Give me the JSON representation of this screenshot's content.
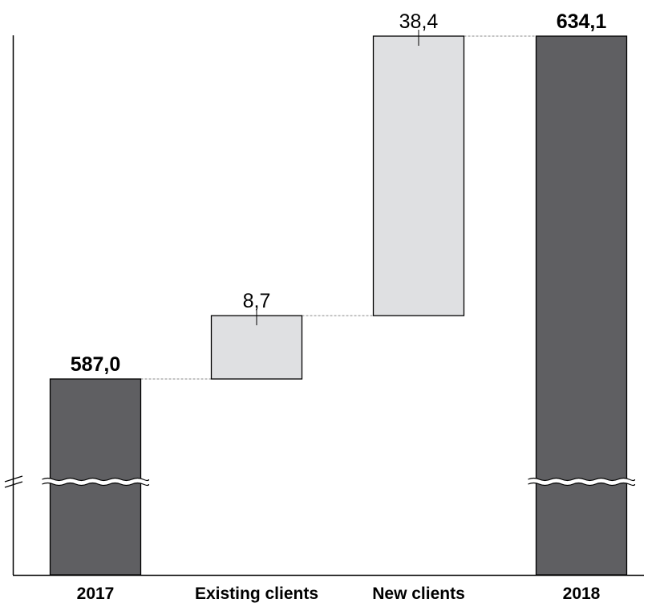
{
  "chart_data": {
    "type": "waterfall",
    "categories": [
      "2017",
      "Existing clients",
      "New clients",
      "2018"
    ],
    "bars": [
      {
        "category": "2017",
        "kind": "total",
        "start": 0,
        "end": 587.0,
        "label": "587,0"
      },
      {
        "category": "Existing clients",
        "kind": "delta",
        "start": 587.0,
        "end": 595.7,
        "label": "8,7"
      },
      {
        "category": "New clients",
        "kind": "delta",
        "start": 595.7,
        "end": 634.1,
        "label": "38,4"
      },
      {
        "category": "2018",
        "kind": "total",
        "start": 0,
        "end": 634.1,
        "label": "634,1"
      }
    ],
    "axis_break": true,
    "grid": false,
    "colors": {
      "total": "#5f5f62",
      "delta": "#dfe0e2",
      "outline": "#000000",
      "connector": "#8a8a8a"
    }
  }
}
